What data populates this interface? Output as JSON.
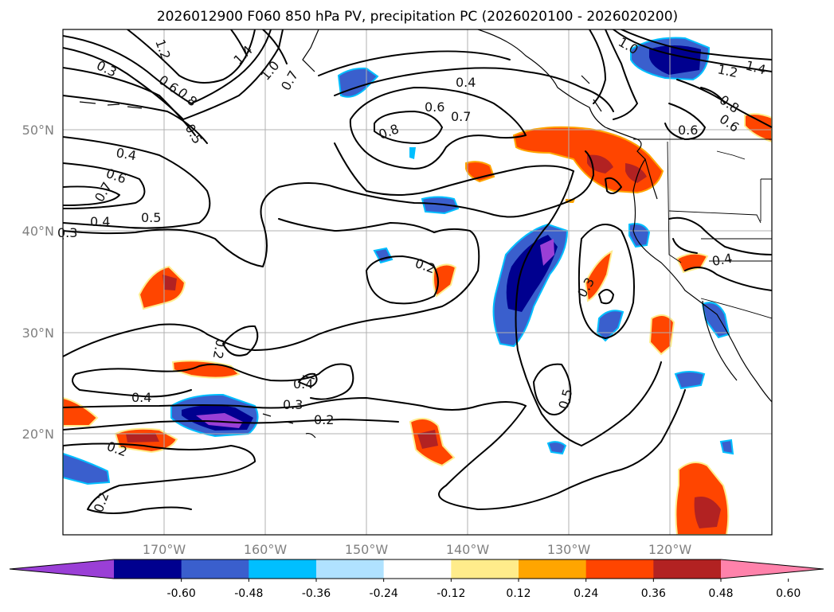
{
  "title": "2026012900 F060 850 hPa PV, precipitation PC (2026020100 - 2026020200)",
  "map": {
    "lat_labels": [
      "50°N",
      "40°N",
      "30°N",
      "20°N"
    ],
    "lon_labels": [
      "170°W",
      "160°W",
      "150°W",
      "140°W",
      "130°W",
      "120°W"
    ]
  },
  "colorbar": {
    "colors": [
      "#9a3fd6",
      "#00008f",
      "#3a5fcd",
      "#00bfff",
      "#b0e2ff",
      "#ffffff",
      "#ffec8b",
      "#ffa500",
      "#ff4500",
      "#b22222",
      "#ff82ab"
    ],
    "tick_labels": [
      "-0.60",
      "-0.48",
      "-0.36",
      "-0.24",
      "-0.12",
      "0.12",
      "0.24",
      "0.36",
      "0.48",
      "0.60"
    ]
  },
  "contour_labels": [
    "1.2",
    "0.3",
    "0.6",
    "0.8",
    "0.5",
    "1.4",
    "1.0",
    "0.7",
    "0.4",
    "0.6",
    "0.7",
    "0.8",
    "1.0",
    "1.2",
    "1.4",
    "0.8",
    "0.6",
    "0.6",
    "0.4",
    "0.6",
    "0.7",
    "0.5",
    "0.4",
    "0.3",
    "0.2",
    "0.3",
    "0.4",
    "0.2",
    "0.4",
    "0.3",
    "0.2",
    "0.2",
    "0.2",
    "0.5",
    "0.4"
  ]
}
